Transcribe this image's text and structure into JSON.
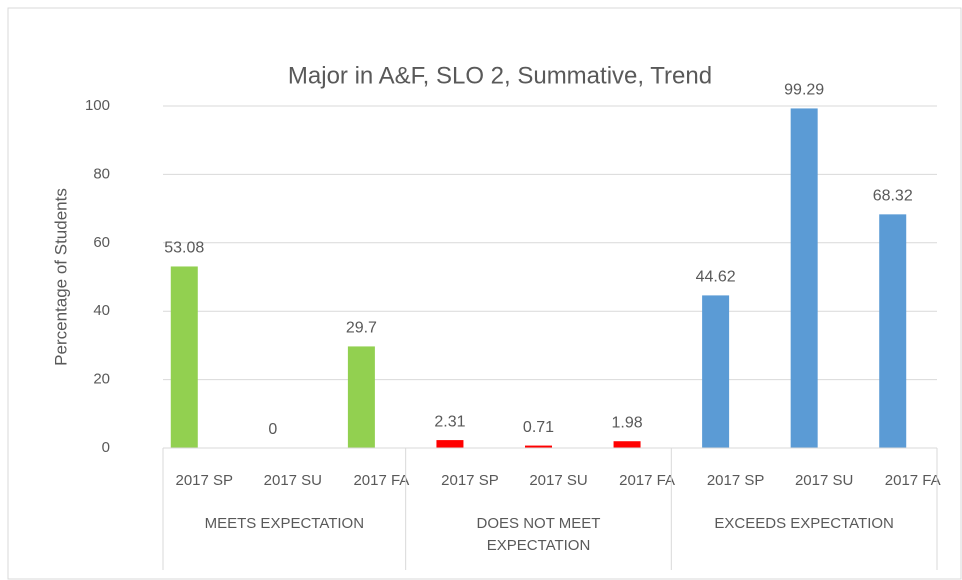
{
  "chart_data": {
    "type": "bar",
    "title": "Major in A&F, SLO 2, Summative, Trend",
    "y_label": "Percentage of Students",
    "groups": [
      {
        "name": "MEETS EXPECTATION",
        "color": "#92d050",
        "categories": [
          "2017 SP",
          "2017 SU",
          "2017 FA"
        ],
        "values": [
          53.08,
          0,
          29.7
        ]
      },
      {
        "name": "DOES NOT MEET EXPECTATION",
        "color": "#ff0000",
        "categories": [
          "2017 SP",
          "2017 SU",
          "2017 FA"
        ],
        "values": [
          2.31,
          0.71,
          1.98
        ]
      },
      {
        "name": "EXCEEDS EXPECTATION",
        "color": "#5b9bd5",
        "categories": [
          "2017 SP",
          "2017 SU",
          "2017 FA"
        ],
        "values": [
          44.62,
          99.29,
          68.32
        ]
      }
    ],
    "ylim": [
      0,
      100
    ],
    "yticks": [
      0,
      20,
      40,
      60,
      80,
      100
    ],
    "grid": true
  }
}
